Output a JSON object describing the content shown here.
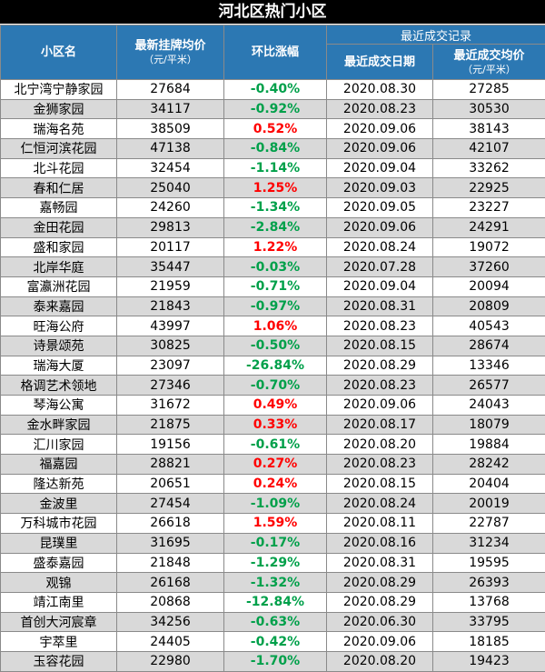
{
  "title": "河北区热门小区",
  "headers": {
    "name": "小区名",
    "listing_price": "最新挂牌均价",
    "listing_price_unit": "（元/平米）",
    "change": "环比涨幅",
    "recent_group": "最近成交记录",
    "deal_date": "最近成交日期",
    "deal_price": "最近成交均价",
    "deal_price_unit": "（元/平米）"
  },
  "colors": {
    "header_bg": "#2c78b3",
    "up": "#ff0000",
    "down": "#00a04a"
  },
  "rows": [
    {
      "name": "北宁湾宁静家园",
      "price": "27684",
      "change": "-0.40%",
      "date": "2020.08.30",
      "deal": "27285"
    },
    {
      "name": "金狮家园",
      "price": "34117",
      "change": "-0.92%",
      "date": "2020.08.23",
      "deal": "30530"
    },
    {
      "name": "瑞海名苑",
      "price": "38509",
      "change": "0.52%",
      "date": "2020.09.06",
      "deal": "38143"
    },
    {
      "name": "仁恒河滨花园",
      "price": "47138",
      "change": "-0.84%",
      "date": "2020.09.06",
      "deal": "42107"
    },
    {
      "name": "北斗花园",
      "price": "32454",
      "change": "-1.14%",
      "date": "2020.09.04",
      "deal": "33262"
    },
    {
      "name": "春和仁居",
      "price": "25040",
      "change": "1.25%",
      "date": "2020.09.03",
      "deal": "22925"
    },
    {
      "name": "嘉畅园",
      "price": "24260",
      "change": "-1.34%",
      "date": "2020.09.05",
      "deal": "23227"
    },
    {
      "name": "金田花园",
      "price": "29813",
      "change": "-2.84%",
      "date": "2020.09.06",
      "deal": "24291"
    },
    {
      "name": "盛和家园",
      "price": "20117",
      "change": "1.22%",
      "date": "2020.08.24",
      "deal": "19072"
    },
    {
      "name": "北岸华庭",
      "price": "35447",
      "change": "-0.03%",
      "date": "2020.07.28",
      "deal": "37260"
    },
    {
      "name": "富瀛洲花园",
      "price": "21959",
      "change": "-0.71%",
      "date": "2020.09.04",
      "deal": "20094"
    },
    {
      "name": "泰来嘉园",
      "price": "21843",
      "change": "-0.97%",
      "date": "2020.08.31",
      "deal": "20809"
    },
    {
      "name": "旺海公府",
      "price": "43997",
      "change": "1.06%",
      "date": "2020.08.23",
      "deal": "40543"
    },
    {
      "name": "诗景颂苑",
      "price": "30825",
      "change": "-0.50%",
      "date": "2020.08.15",
      "deal": "28674"
    },
    {
      "name": "瑞海大厦",
      "price": "23097",
      "change": "-26.84%",
      "date": "2020.08.29",
      "deal": "13346"
    },
    {
      "name": "格调艺术领地",
      "price": "27346",
      "change": "-0.70%",
      "date": "2020.08.23",
      "deal": "26577"
    },
    {
      "name": "琴海公寓",
      "price": "31672",
      "change": "0.49%",
      "date": "2020.09.06",
      "deal": "24043"
    },
    {
      "name": "金水畔家园",
      "price": "21875",
      "change": "0.33%",
      "date": "2020.08.17",
      "deal": "18079"
    },
    {
      "name": "汇川家园",
      "price": "19156",
      "change": "-0.61%",
      "date": "2020.08.20",
      "deal": "19884"
    },
    {
      "name": "福嘉园",
      "price": "28821",
      "change": "0.27%",
      "date": "2020.08.23",
      "deal": "28242"
    },
    {
      "name": "隆达新苑",
      "price": "20651",
      "change": "0.24%",
      "date": "2020.08.15",
      "deal": "20404"
    },
    {
      "name": "金波里",
      "price": "27454",
      "change": "-1.09%",
      "date": "2020.08.24",
      "deal": "20019"
    },
    {
      "name": "万科城市花园",
      "price": "26618",
      "change": "1.59%",
      "date": "2020.08.11",
      "deal": "22787"
    },
    {
      "name": "昆璞里",
      "price": "31695",
      "change": "-0.17%",
      "date": "2020.08.16",
      "deal": "31234"
    },
    {
      "name": "盛泰嘉园",
      "price": "21848",
      "change": "-1.29%",
      "date": "2020.08.31",
      "deal": "19595"
    },
    {
      "name": "观锦",
      "price": "26168",
      "change": "-1.32%",
      "date": "2020.08.29",
      "deal": "26393"
    },
    {
      "name": "靖江南里",
      "price": "20868",
      "change": "-12.84%",
      "date": "2020.08.29",
      "deal": "13768"
    },
    {
      "name": "首创大河宸章",
      "price": "34256",
      "change": "-0.63%",
      "date": "2020.06.30",
      "deal": "33795"
    },
    {
      "name": "宇萃里",
      "price": "24405",
      "change": "-0.42%",
      "date": "2020.09.06",
      "deal": "18185"
    },
    {
      "name": "玉容花园",
      "price": "22980",
      "change": "-1.70%",
      "date": "2020.08.20",
      "deal": "19423"
    }
  ]
}
